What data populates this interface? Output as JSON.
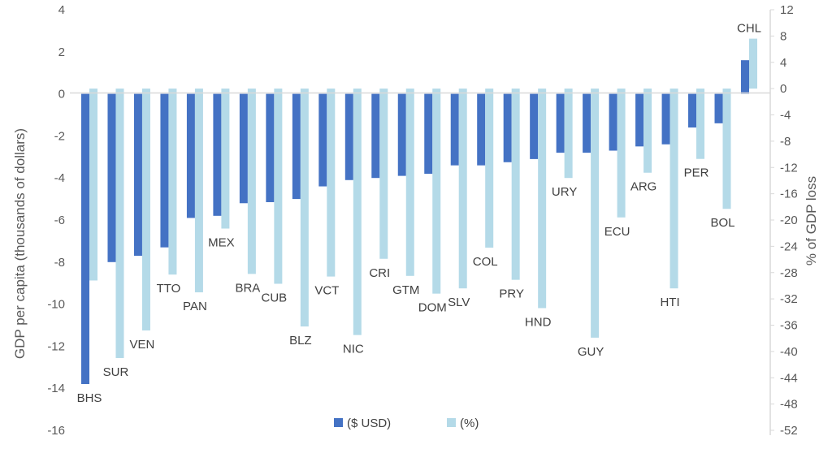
{
  "chart_data": {
    "type": "bar",
    "title": "",
    "ylabel": "GDP per capita (thousands of dollars)",
    "y2label": "% of GDP loss",
    "ylim": [
      -16,
      4
    ],
    "y2lim": [
      -52,
      12
    ],
    "yticks": [
      4,
      2,
      0,
      -2,
      -4,
      -6,
      -8,
      -10,
      -12,
      -14,
      -16
    ],
    "y2ticks": [
      12,
      8,
      4,
      0,
      -4,
      -8,
      -12,
      -16,
      -20,
      -24,
      -28,
      -32,
      -36,
      -40,
      -44,
      -48,
      -52
    ],
    "grid": false,
    "legend_position": "bottom",
    "categories": [
      "BHS",
      "SUR",
      "VEN",
      "TTO",
      "PAN",
      "MEX",
      "BRA",
      "CUB",
      "BLZ",
      "VCT",
      "NIC",
      "CRI",
      "GTM",
      "DOM",
      "SLV",
      "COL",
      "PRY",
      "HND",
      "URY",
      "GUY",
      "ECU",
      "ARG",
      "HTI",
      "PER",
      "BOL",
      "CHL"
    ],
    "series": [
      {
        "name": "($ USD)",
        "axis": "left",
        "color": "#4472C4",
        "values": [
          -13.8,
          -8.0,
          -7.7,
          -7.3,
          -5.9,
          -5.8,
          -5.2,
          -5.15,
          -5.0,
          -4.4,
          -4.1,
          -4.0,
          -3.9,
          -3.8,
          -3.4,
          -3.4,
          -3.25,
          -3.1,
          -2.8,
          -2.8,
          -2.7,
          -2.5,
          -2.4,
          -1.6,
          -1.4,
          1.6
        ]
      },
      {
        "name": "(%)",
        "axis": "right",
        "color": "#B4DAE8",
        "values": [
          -29.2,
          -41.0,
          -36.8,
          -28.3,
          -31.0,
          -21.3,
          -28.2,
          -29.7,
          -36.2,
          -28.6,
          -37.5,
          -25.9,
          -28.5,
          -31.2,
          -30.4,
          -24.2,
          -29.1,
          -33.4,
          -13.6,
          -37.9,
          -19.6,
          -12.8,
          -30.4,
          -10.7,
          -18.3,
          7.6
        ]
      }
    ]
  }
}
